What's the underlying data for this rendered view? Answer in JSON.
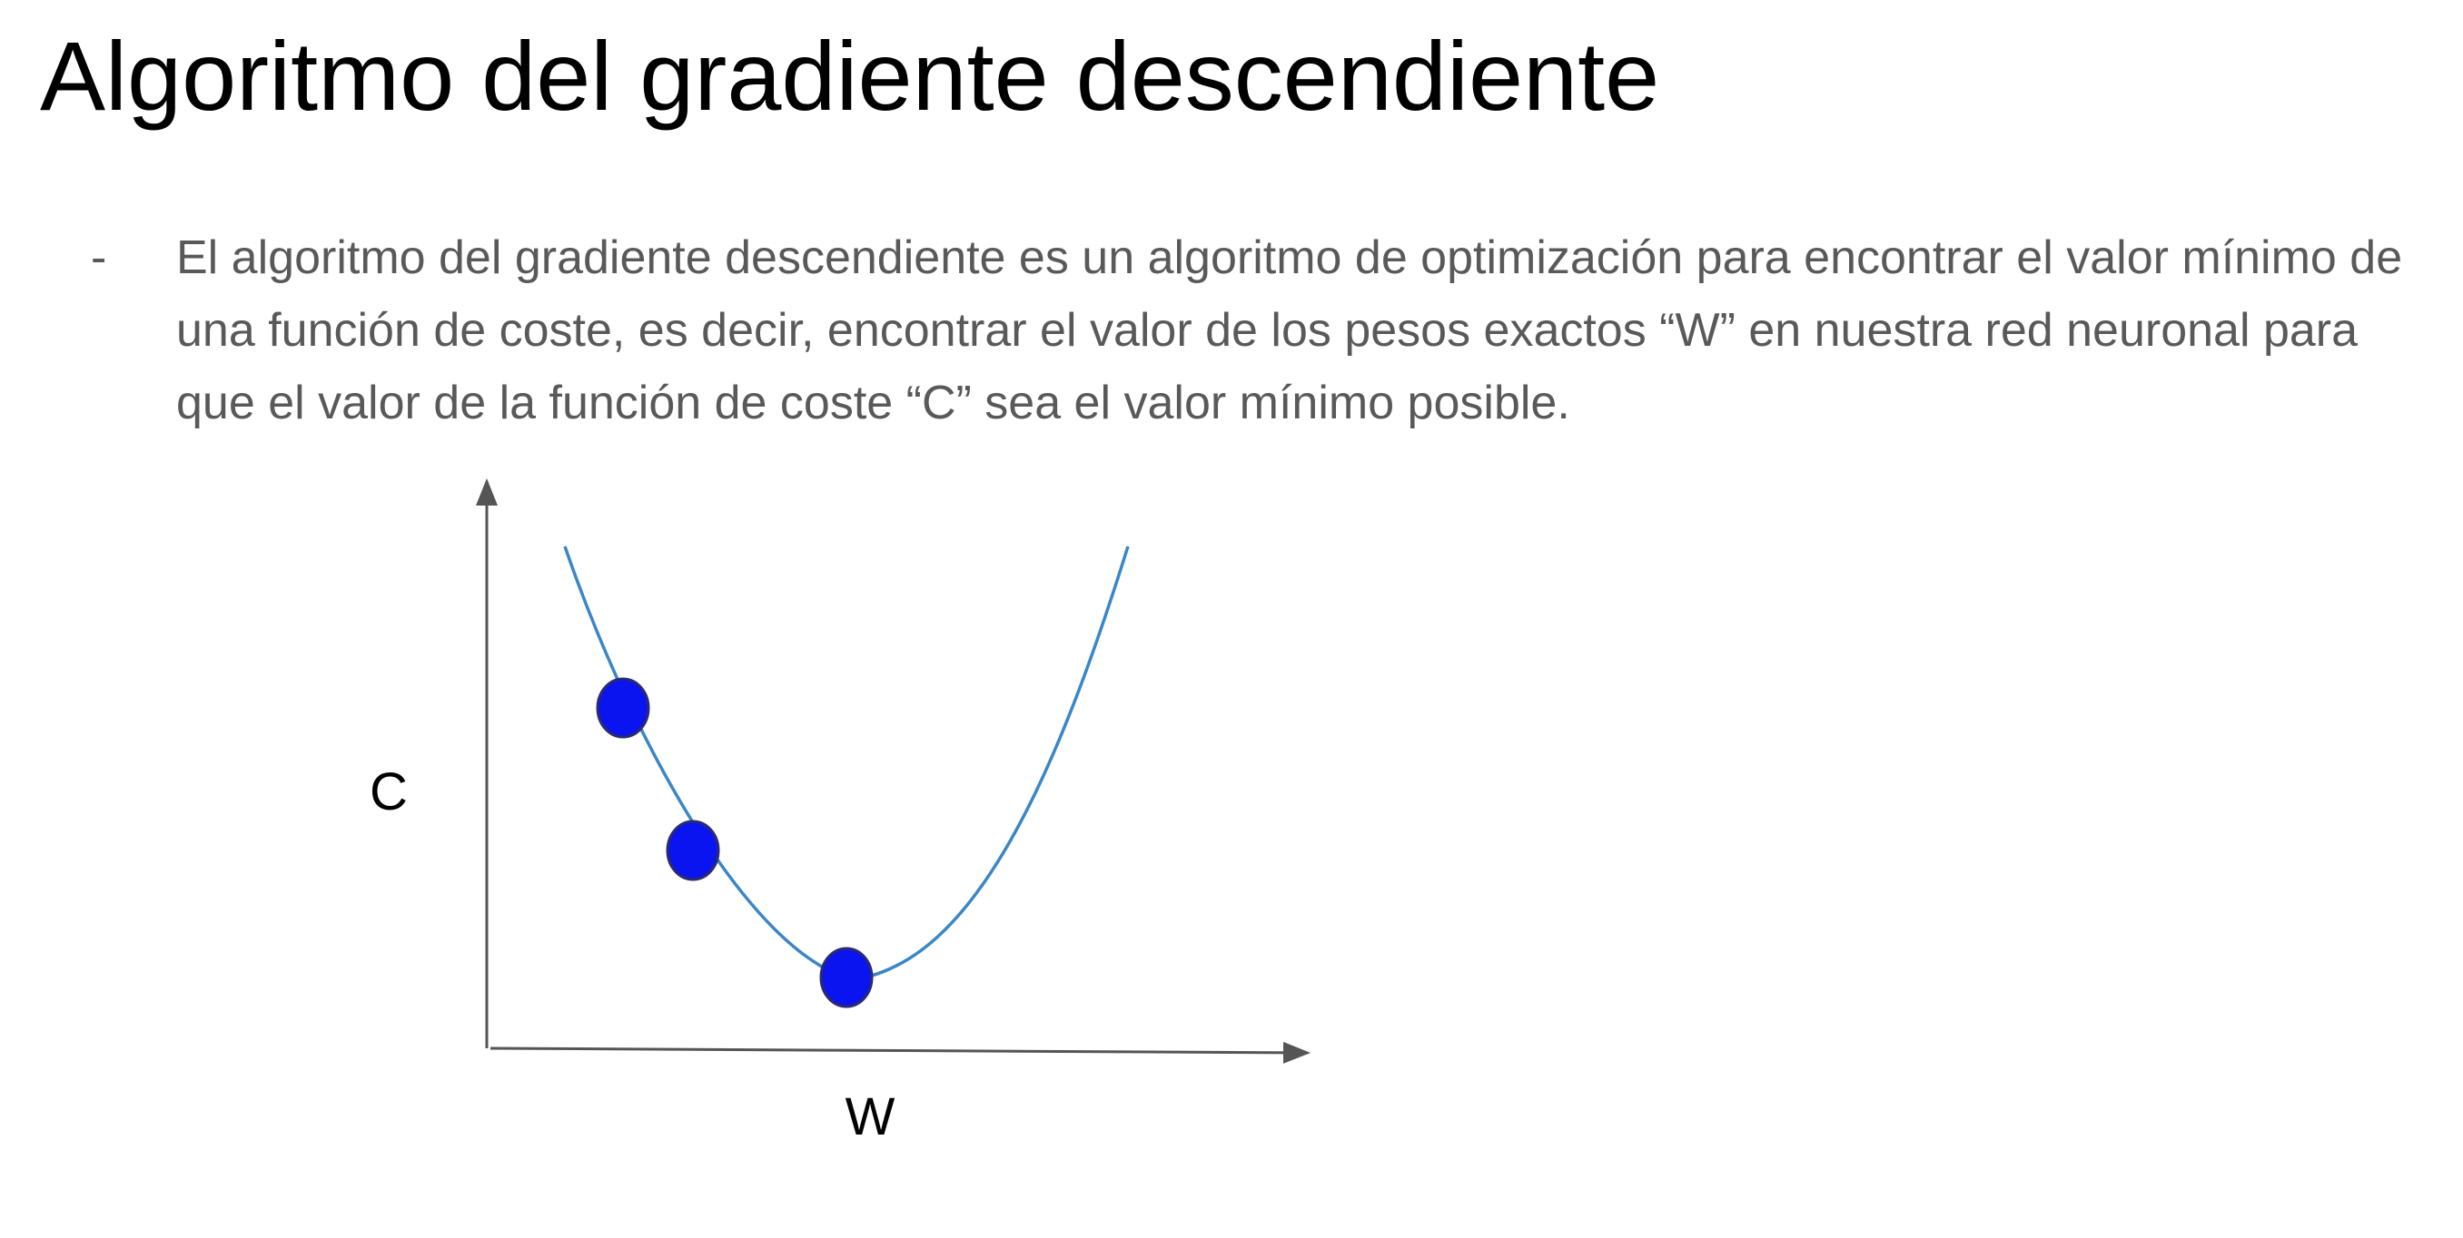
{
  "slide": {
    "title": "Algoritmo del gradiente descendiente",
    "bullet": {
      "marker": "-",
      "text": "El algoritmo del gradiente descendiente es un algoritmo de optimización para encontrar el valor mínimo de una función de coste, es decir, encontrar el valor de los pesos exactos “W” en nuestra red neuronal para que el valor de la función de coste “C”  sea el valor mínimo posible."
    }
  },
  "diagram": {
    "y_axis_label": "C",
    "x_axis_label": "W",
    "curve_color": "#3A86C6",
    "point_color": "#0A14F0",
    "point_count": 3
  }
}
